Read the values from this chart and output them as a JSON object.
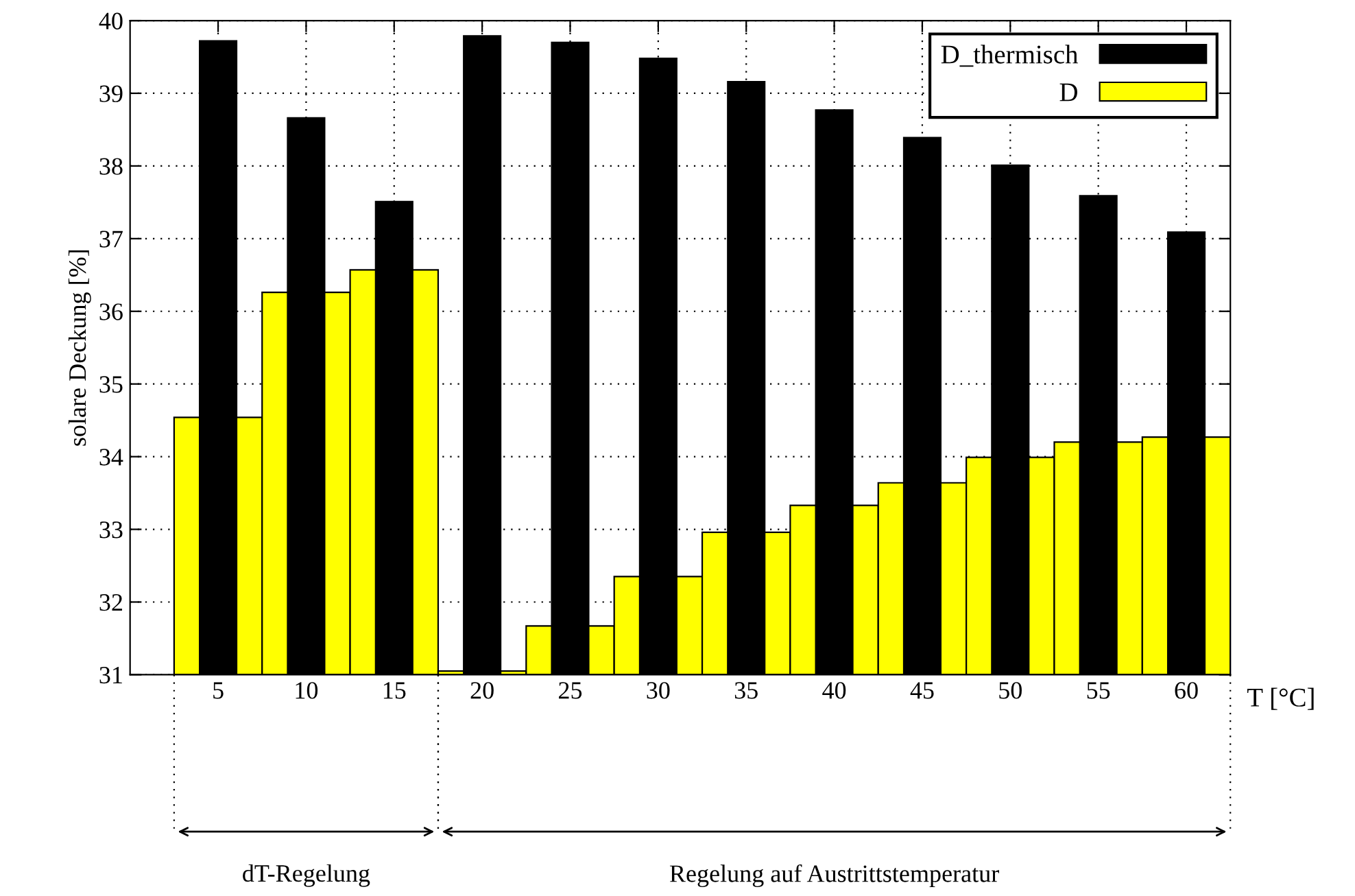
{
  "chart_data": {
    "type": "bar",
    "ylabel": "solare Deckung [%]",
    "xlabel": "T [°C]",
    "categories": [
      "5",
      "10",
      "15",
      "20",
      "25",
      "30",
      "35",
      "40",
      "45",
      "50",
      "55",
      "60"
    ],
    "series": [
      {
        "name": "D",
        "color": "#ffff00",
        "values": [
          34.54,
          36.26,
          36.57,
          31.05,
          31.67,
          32.35,
          32.96,
          33.33,
          33.64,
          33.99,
          34.2,
          34.27
        ]
      },
      {
        "name": "D_thermisch",
        "color": "#000000",
        "values": [
          39.72,
          38.66,
          37.51,
          39.79,
          39.7,
          39.48,
          39.16,
          38.77,
          38.39,
          38.01,
          37.59,
          37.09
        ]
      }
    ],
    "ylim": [
      31,
      40
    ],
    "yticks": [
      31,
      32,
      33,
      34,
      35,
      36,
      37,
      38,
      39,
      40
    ],
    "grid": true,
    "legend": "top right",
    "annotations": [
      "dT-Regelung",
      "Regelung auf Austrittstemperatur"
    ]
  }
}
